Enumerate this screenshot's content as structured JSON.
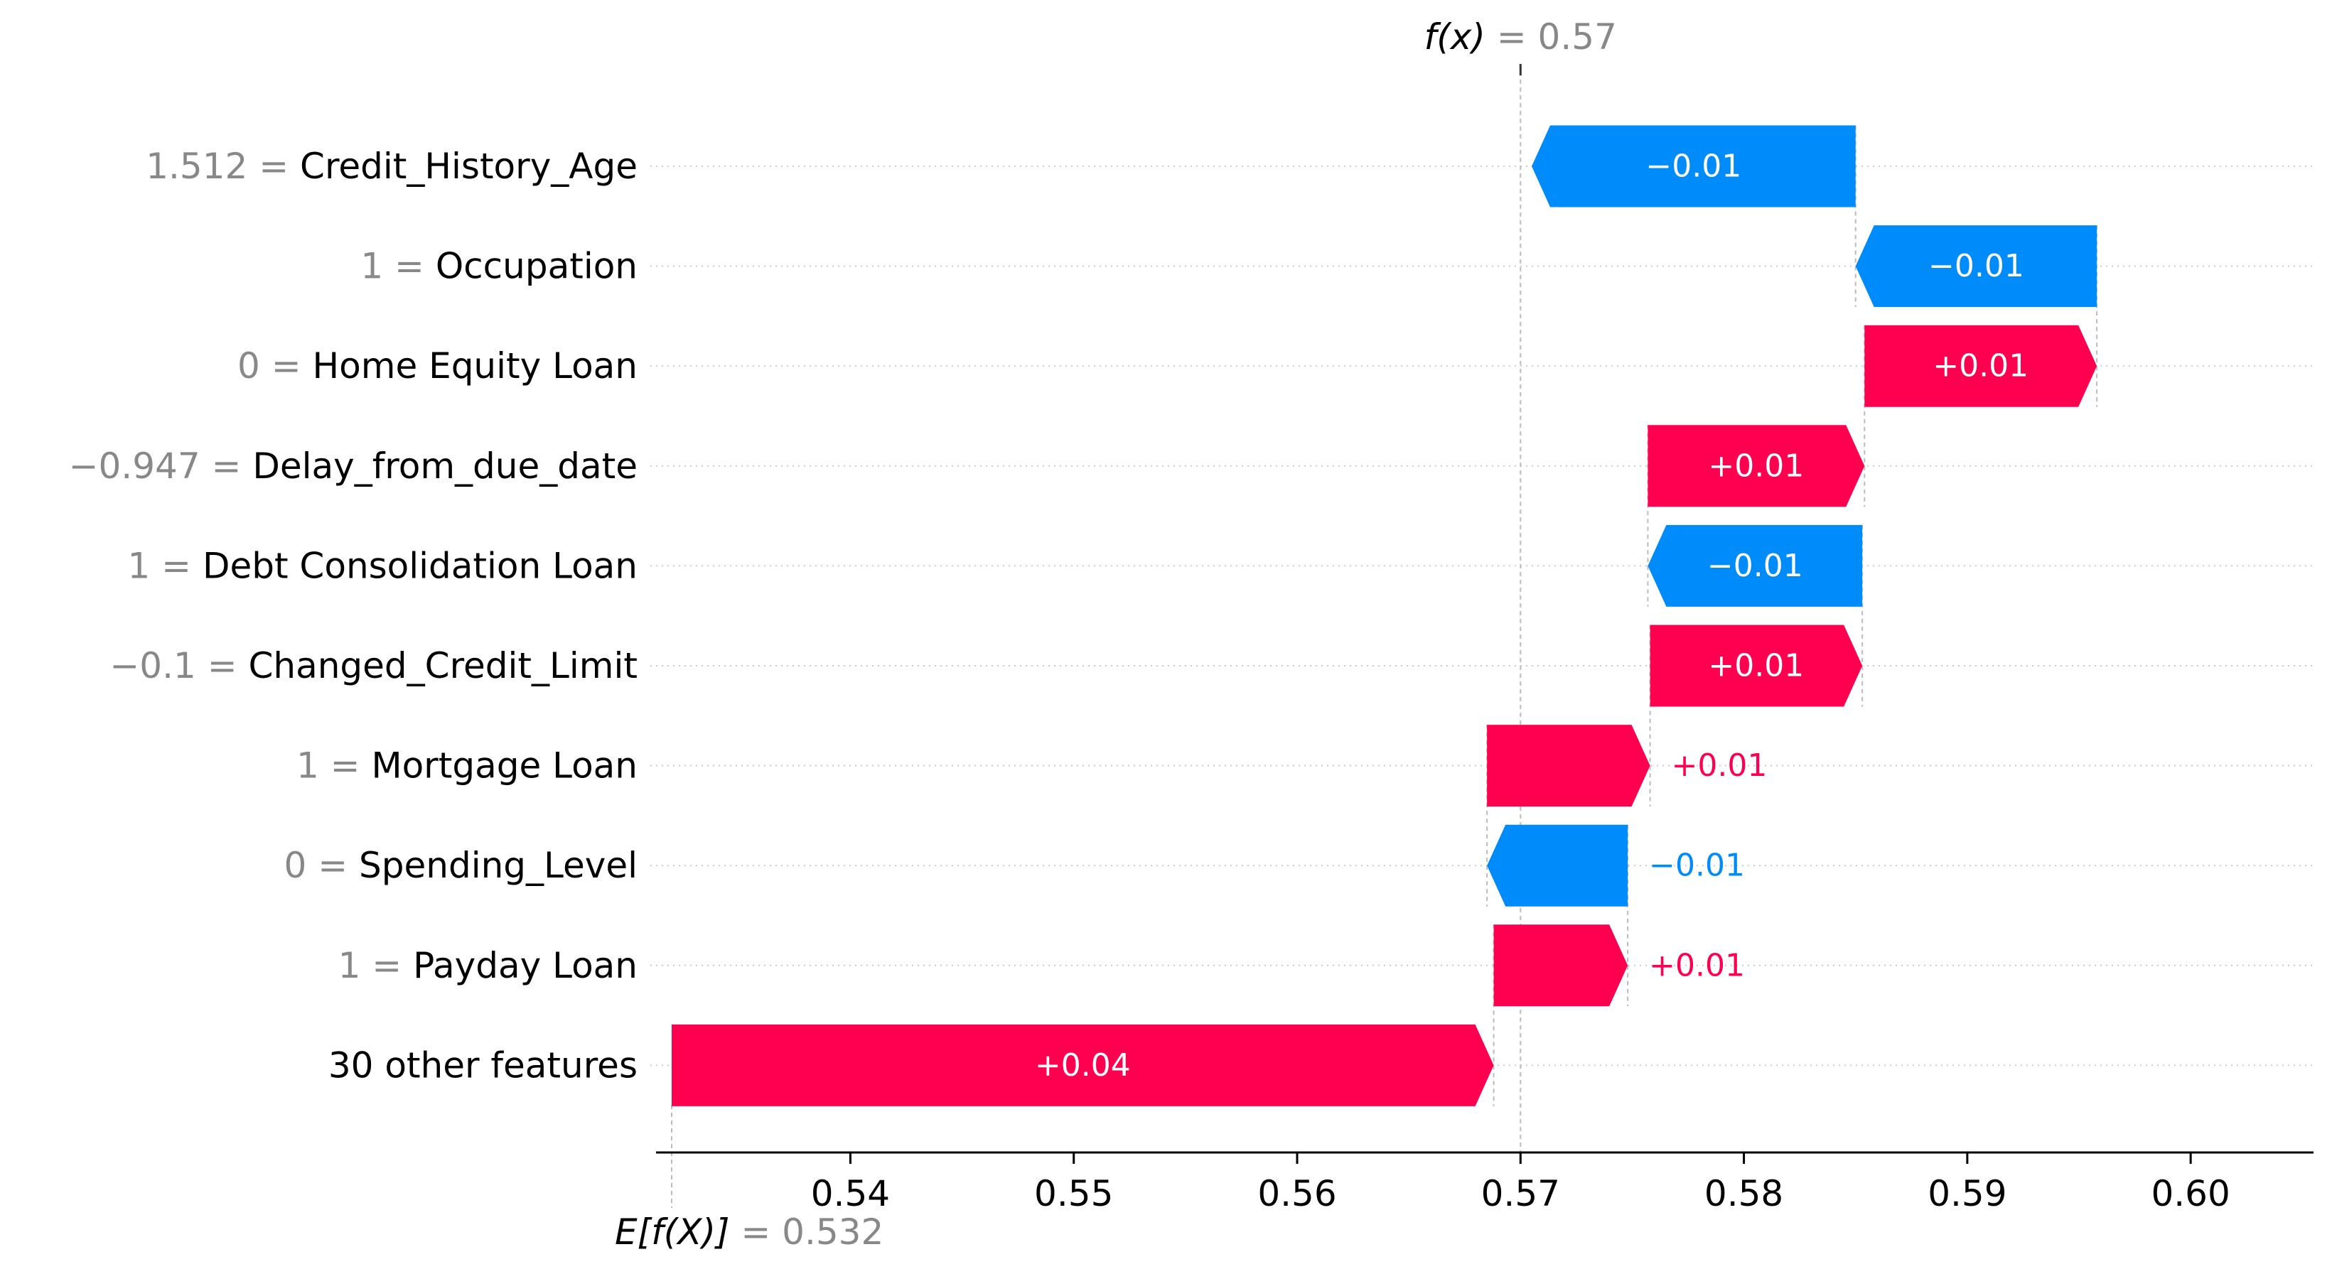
{
  "chart_data": {
    "type": "waterfall",
    "base_value": 0.532,
    "base_label": "E[f(X)]",
    "base_value_text": "= 0.532",
    "output_value": 0.57,
    "output_label": "f(x)",
    "output_value_text": "= 0.57",
    "features": [
      {
        "value": "1.512",
        "name": "Credit_History_Age",
        "shap": -0.0145,
        "label": "−0.01"
      },
      {
        "value": "1",
        "name": "Occupation",
        "shap": -0.0108,
        "label": "−0.01"
      },
      {
        "value": "0",
        "name": "Home Equity Loan",
        "shap": 0.0104,
        "label": "+0.01"
      },
      {
        "value": "−0.947",
        "name": "Delay_from_due_date",
        "shap": 0.0097,
        "label": "+0.01"
      },
      {
        "value": "1",
        "name": "Debt Consolidation Loan",
        "shap": -0.0096,
        "label": "−0.01"
      },
      {
        "value": "−0.1",
        "name": "Changed_Credit_Limit",
        "shap": 0.0095,
        "label": "+0.01"
      },
      {
        "value": "1",
        "name": "Mortgage Loan",
        "shap": 0.0073,
        "label": "+0.01"
      },
      {
        "value": "0",
        "name": "Spending_Level",
        "shap": -0.0063,
        "label": "−0.01"
      },
      {
        "value": "1",
        "name": "Payday Loan",
        "shap": 0.006,
        "label": "+0.01"
      },
      {
        "value": "",
        "name": "30 other features",
        "shap": 0.0368,
        "label": "+0.04"
      }
    ],
    "x_ticks": [
      "0.54",
      "0.55",
      "0.56",
      "0.57",
      "0.58",
      "0.59",
      "0.60"
    ],
    "xlim": [
      0.5313,
      0.6055
    ],
    "colors": {
      "positive": "#ff0051",
      "negative": "#008bfb",
      "feature_value": "#888888",
      "text": "#000000"
    }
  }
}
